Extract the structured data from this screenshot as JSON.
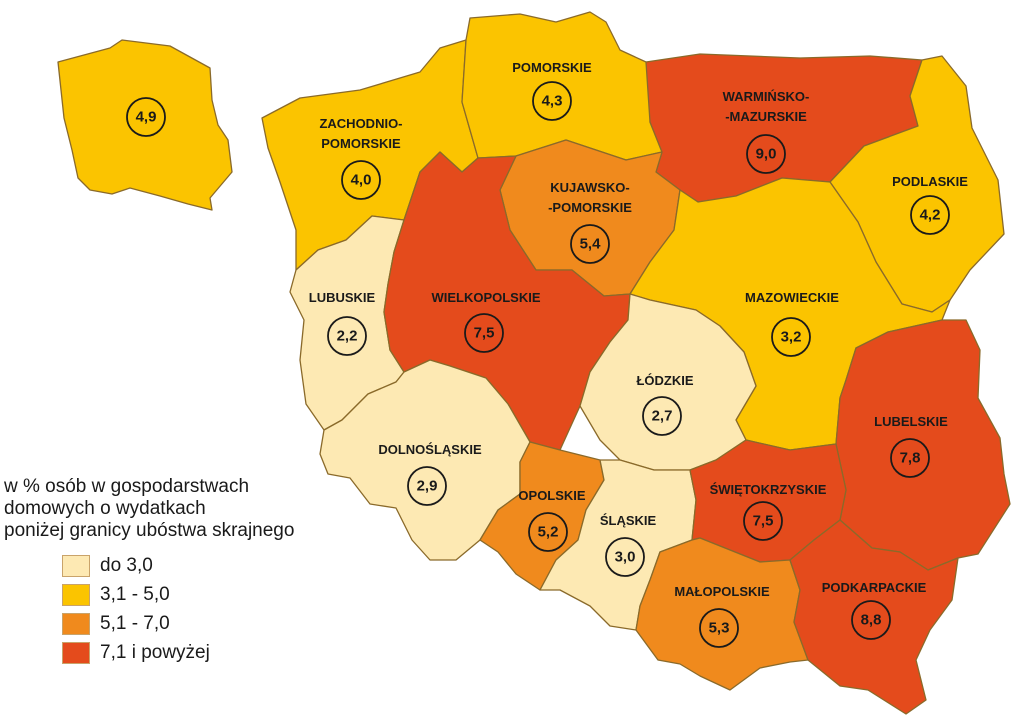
{
  "colors": {
    "do_3_0": "#fde9b3",
    "3_1_5_0": "#fbc400",
    "5_1_7_0": "#f08a1d",
    "7_1_plus": "#e44b1c",
    "border": "#8a6a2a"
  },
  "inset": {
    "value": "4,9",
    "class": "3_1_5_0"
  },
  "regions": [
    {
      "key": "zachodniopomorskie",
      "name_lines": [
        "ZACHODNIO-",
        "POMORSKIE"
      ],
      "value": "4,0",
      "class": "3_1_5_0"
    },
    {
      "key": "pomorskie",
      "name_lines": [
        "POMORSKIE"
      ],
      "value": "4,3",
      "class": "3_1_5_0"
    },
    {
      "key": "warminsko_mazurskie",
      "name_lines": [
        "WARMIŃSKO-",
        "-MAZURSKIE"
      ],
      "value": "9,0",
      "class": "7_1_plus"
    },
    {
      "key": "podlaskie",
      "name_lines": [
        "PODLASKIE"
      ],
      "value": "4,2",
      "class": "3_1_5_0"
    },
    {
      "key": "kujawsko_pomorskie",
      "name_lines": [
        "KUJAWSKO-",
        "-POMORSKIE"
      ],
      "value": "5,4",
      "class": "5_1_7_0"
    },
    {
      "key": "lubuskie",
      "name_lines": [
        "LUBUSKIE"
      ],
      "value": "2,2",
      "class": "do_3_0"
    },
    {
      "key": "wielkopolskie",
      "name_lines": [
        "WIELKOPOLSKIE"
      ],
      "value": "7,5",
      "class": "7_1_plus"
    },
    {
      "key": "mazowieckie",
      "name_lines": [
        "MAZOWIECKIE"
      ],
      "value": "3,2",
      "class": "3_1_5_0"
    },
    {
      "key": "lodzkie",
      "name_lines": [
        "ŁÓDZKIE"
      ],
      "value": "2,7",
      "class": "do_3_0"
    },
    {
      "key": "lubelskie",
      "name_lines": [
        "LUBELSKIE"
      ],
      "value": "7,8",
      "class": "7_1_plus"
    },
    {
      "key": "dolnoslaskie",
      "name_lines": [
        "DOLNOŚLĄSKIE"
      ],
      "value": "2,9",
      "class": "do_3_0"
    },
    {
      "key": "opolskie",
      "name_lines": [
        "OPOLSKIE"
      ],
      "value": "5,2",
      "class": "5_1_7_0"
    },
    {
      "key": "slaskie",
      "name_lines": [
        "ŚLĄSKIE"
      ],
      "value": "3,0",
      "class": "do_3_0"
    },
    {
      "key": "swietokrzyskie",
      "name_lines": [
        "ŚWIĘTOKRZYSKIE"
      ],
      "value": "7,5",
      "class": "7_1_plus"
    },
    {
      "key": "malopolskie",
      "name_lines": [
        "MAŁOPOLSKIE"
      ],
      "value": "5,3",
      "class": "5_1_7_0"
    },
    {
      "key": "podkarpackie",
      "name_lines": [
        "PODKARPACKIE"
      ],
      "value": "8,8",
      "class": "7_1_plus"
    }
  ],
  "legend": {
    "title_lines": [
      "w % osób w gospodarstwach",
      "domowych o wydatkach",
      "poniżej granicy ubóstwa skrajnego"
    ],
    "items": [
      {
        "label": "do 3,0",
        "class": "do_3_0"
      },
      {
        "label": "3,1 - 5,0",
        "class": "3_1_5_0"
      },
      {
        "label": "5,1 - 7,0",
        "class": "5_1_7_0"
      },
      {
        "label": "7,1 i powyżej",
        "class": "7_1_plus"
      }
    ]
  }
}
